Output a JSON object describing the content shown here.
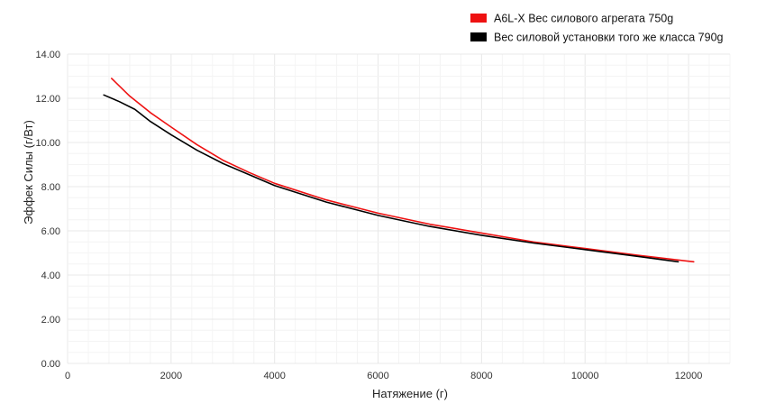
{
  "chart_data": {
    "type": "line",
    "xlabel": "Натяжение (г)",
    "ylabel": "Эффек Силы (г/Вт)",
    "xlim": [
      0,
      12800
    ],
    "ylim": [
      0,
      14
    ],
    "x_ticks": [
      0,
      2000,
      4000,
      6000,
      8000,
      10000,
      12000
    ],
    "x_tick_labels": [
      "0",
      "2000",
      "4000",
      "6000",
      "8000",
      "10000",
      "12000"
    ],
    "y_ticks": [
      0,
      2,
      4,
      6,
      8,
      10,
      12,
      14
    ],
    "y_tick_labels": [
      "0.00",
      "2.00",
      "4.00",
      "6.00",
      "8.00",
      "10.00",
      "12.00",
      "14.00"
    ],
    "grid": true,
    "legend_position": "top-right",
    "series": [
      {
        "name": "A6L-X Вес силового агрегата 750g",
        "color": "#ee1111",
        "points": [
          [
            850,
            12.9
          ],
          [
            1200,
            12.1
          ],
          [
            1600,
            11.35
          ],
          [
            2000,
            10.7
          ],
          [
            2500,
            9.9
          ],
          [
            3000,
            9.2
          ],
          [
            3500,
            8.65
          ],
          [
            4000,
            8.15
          ],
          [
            5000,
            7.4
          ],
          [
            6000,
            6.8
          ],
          [
            7000,
            6.3
          ],
          [
            8000,
            5.9
          ],
          [
            9000,
            5.5
          ],
          [
            10000,
            5.2
          ],
          [
            11000,
            4.9
          ],
          [
            12100,
            4.6
          ]
        ]
      },
      {
        "name": "Вес силовой установки того же класса 790g",
        "color": "#000000",
        "points": [
          [
            700,
            12.15
          ],
          [
            1000,
            11.85
          ],
          [
            1300,
            11.5
          ],
          [
            1600,
            10.95
          ],
          [
            2000,
            10.35
          ],
          [
            2500,
            9.65
          ],
          [
            3000,
            9.05
          ],
          [
            3500,
            8.55
          ],
          [
            4000,
            8.05
          ],
          [
            5000,
            7.3
          ],
          [
            6000,
            6.7
          ],
          [
            7000,
            6.2
          ],
          [
            8000,
            5.8
          ],
          [
            9000,
            5.45
          ],
          [
            10000,
            5.15
          ],
          [
            11000,
            4.85
          ],
          [
            11800,
            4.6
          ]
        ]
      }
    ]
  }
}
